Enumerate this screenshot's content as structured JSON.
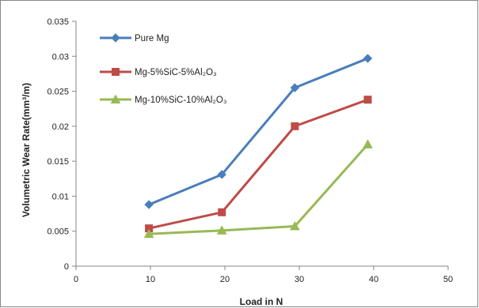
{
  "chart_data": {
    "type": "line",
    "xlabel": "Load in N",
    "ylabel": "Volumetric Wear Rate(mm³/m)",
    "xlim": [
      0,
      50
    ],
    "ylim": [
      0,
      0.035
    ],
    "x_ticks": [
      "0",
      "10",
      "20",
      "30",
      "40",
      "50"
    ],
    "y_ticks": [
      "0",
      "0.005",
      "0.01",
      "0.015",
      "0.02",
      "0.025",
      "0.03",
      "0.035"
    ],
    "grid": false,
    "legend_position": "top-left",
    "series": [
      {
        "name": "Pure Mg",
        "marker": "diamond",
        "color": "#4A7EBB",
        "x": [
          9.8,
          19.6,
          29.4,
          39.2
        ],
        "y": [
          0.0088,
          0.0131,
          0.0255,
          0.0297
        ]
      },
      {
        "name": "Mg-5%SiC-5%Al₂O₃",
        "marker": "square",
        "color": "#BE4B48",
        "x": [
          9.8,
          19.6,
          29.4,
          39.2
        ],
        "y": [
          0.0054,
          0.0077,
          0.02,
          0.0238
        ]
      },
      {
        "name": "Mg-10%SiC-10%Al₂O₃",
        "marker": "triangle",
        "color": "#98B954",
        "x": [
          9.8,
          19.6,
          29.4,
          39.2
        ],
        "y": [
          0.0046,
          0.0051,
          0.0057,
          0.0174
        ]
      }
    ]
  }
}
